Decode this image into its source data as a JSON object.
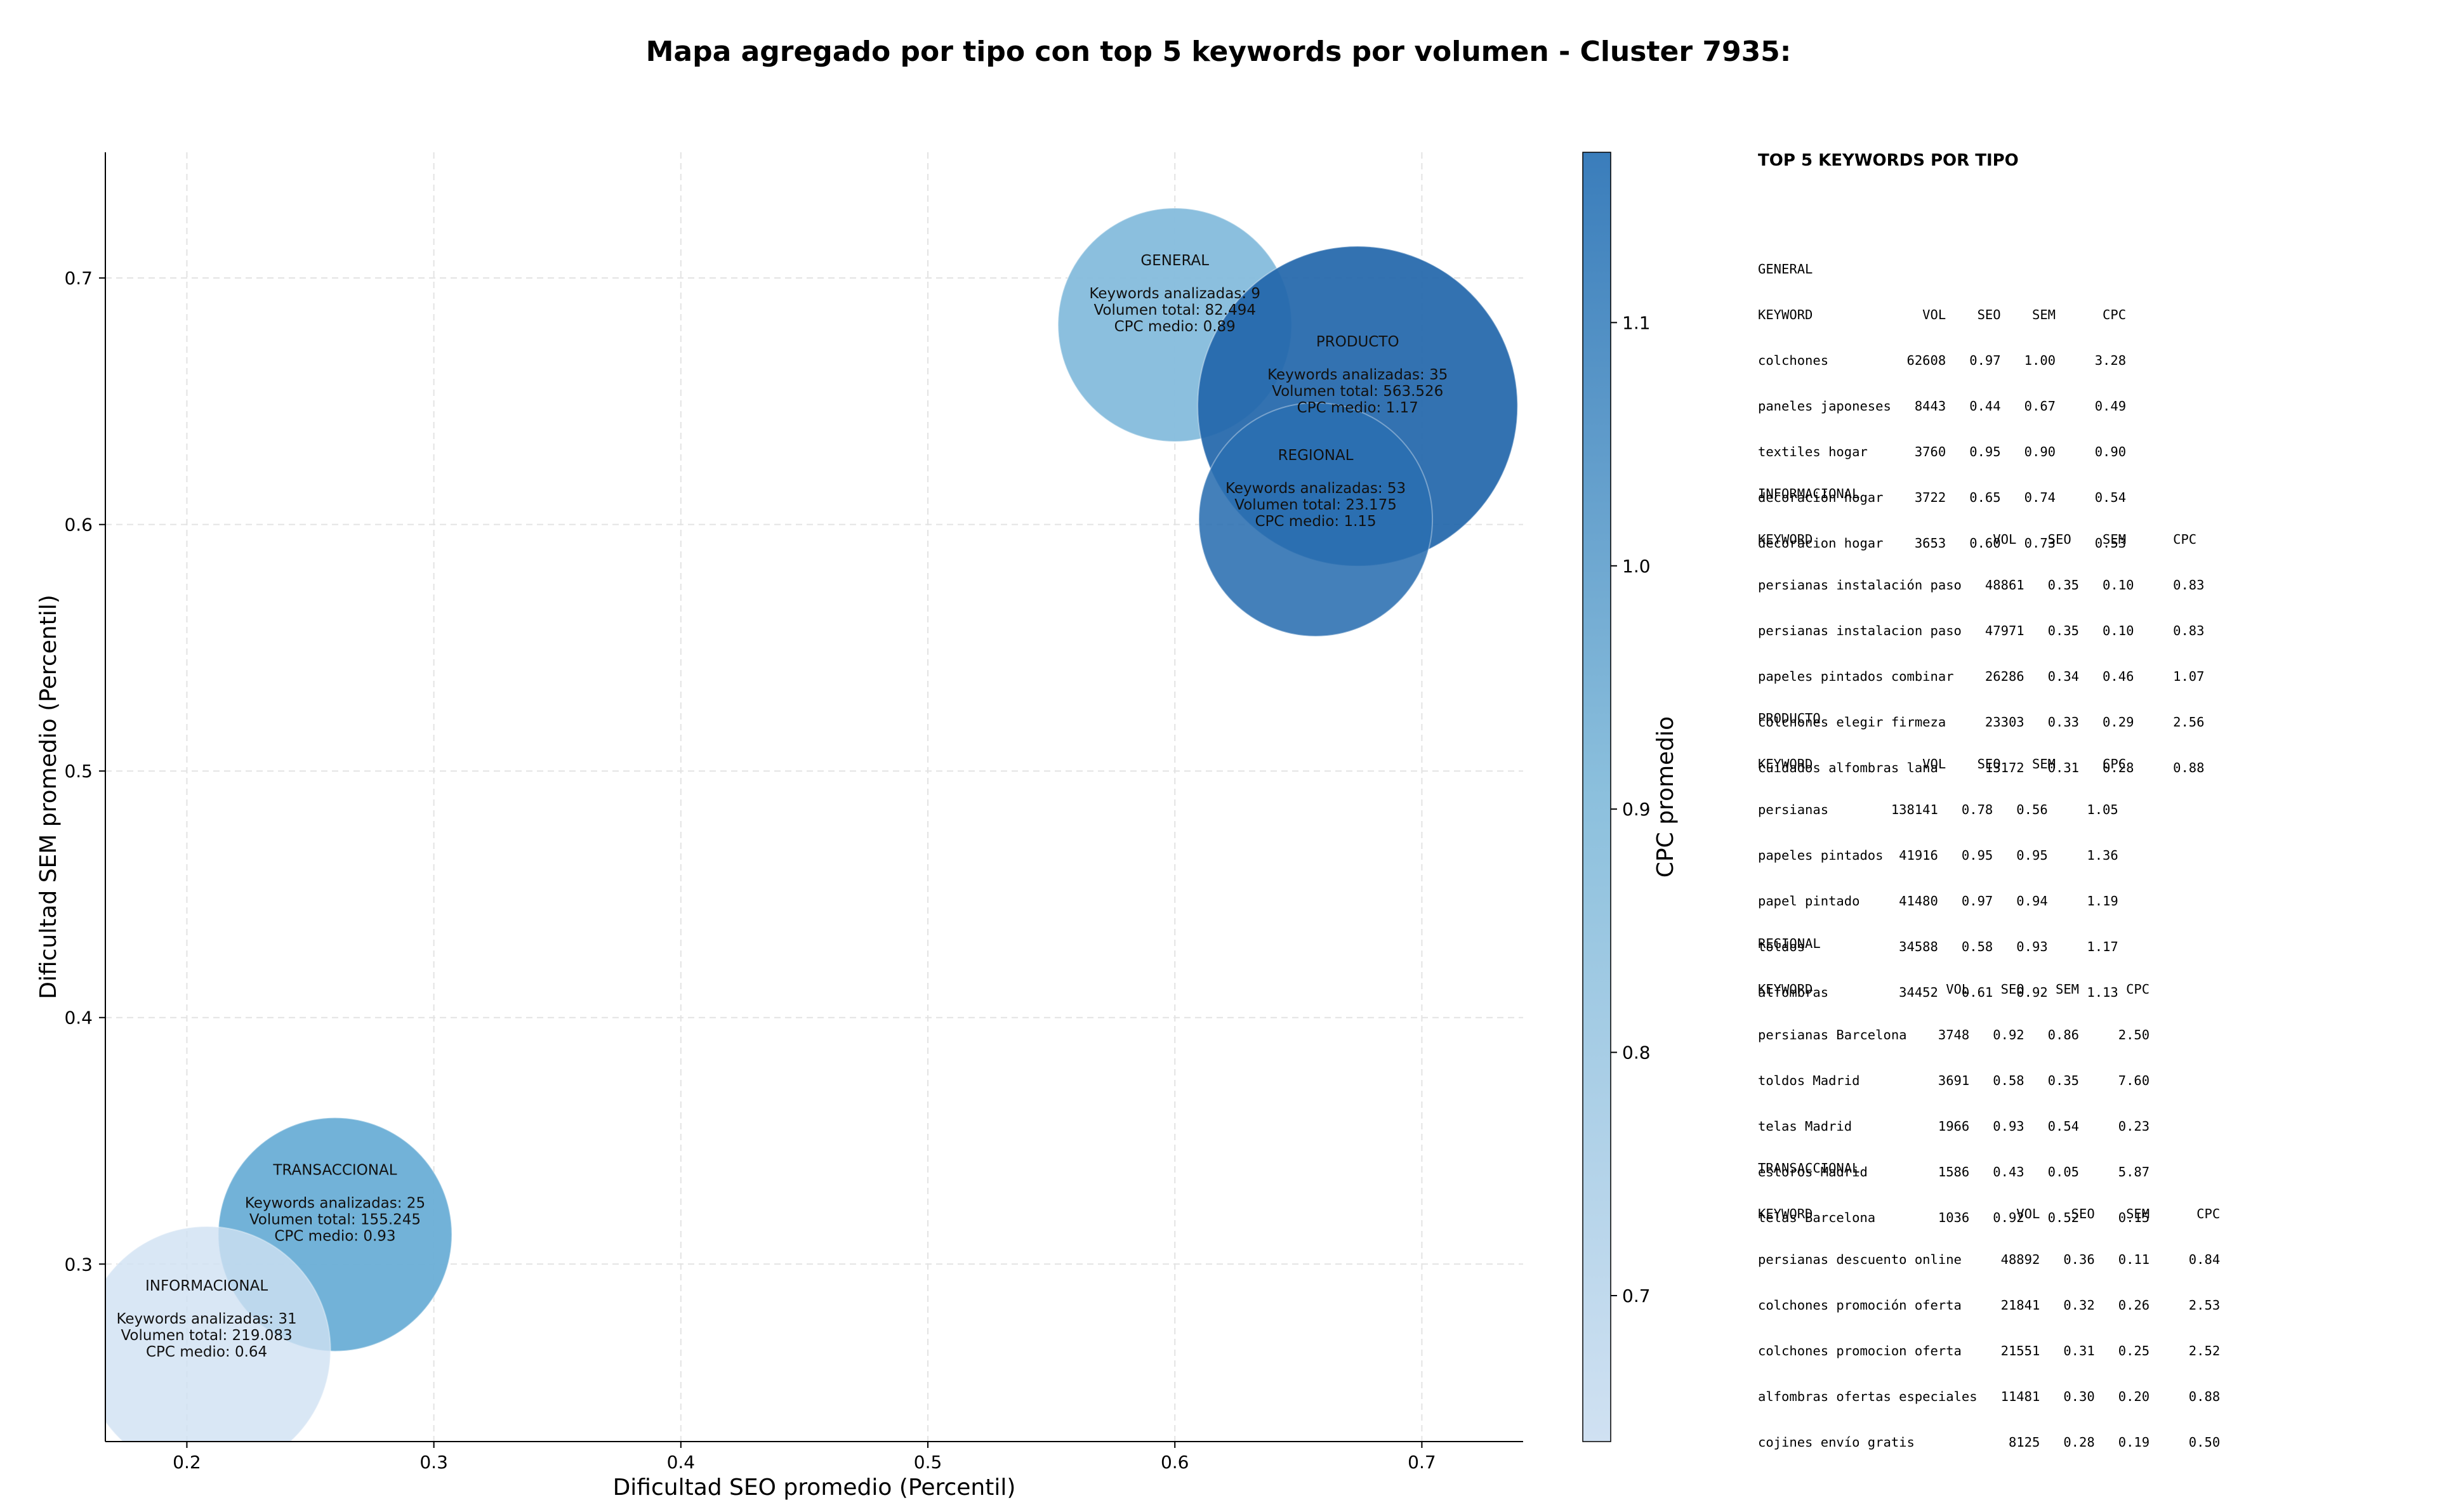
{
  "title": "Mapa agregado por tipo con top 5 keywords por volumen - Cluster 7935:",
  "chart_data": {
    "type": "scatter",
    "subtype": "bubble",
    "title": "Mapa agregado por tipo con top 5 keywords por volumen - Cluster 7935:",
    "xlabel": "Dificultad SEO promedio (Percentil)",
    "ylabel": "Dificultad SEM promedio (Percentil)",
    "xlim": [
      0.167,
      0.741
    ],
    "ylim": [
      0.228,
      0.751
    ],
    "xticks": [
      0.2,
      0.3,
      0.4,
      0.5,
      0.6,
      0.7
    ],
    "yticks": [
      0.3,
      0.4,
      0.5,
      0.6,
      0.7
    ],
    "xtick_labels": [
      "0.2",
      "0.3",
      "0.4",
      "0.5",
      "0.6",
      "0.7"
    ],
    "ytick_labels": [
      "0.3",
      "0.4",
      "0.5",
      "0.6",
      "0.7"
    ],
    "grid": true,
    "bubble_size_encodes": "Volumen total",
    "color_encodes": "CPC medio",
    "colorbar": {
      "label": "CPC promedio",
      "range": [
        0.64,
        1.17
      ],
      "ticks": [
        0.7,
        0.8,
        0.9,
        1.0,
        1.1
      ],
      "tick_labels": [
        "0.7",
        "0.8",
        "0.9",
        "1.0",
        "1.1"
      ],
      "color_low": "#d0e1f2",
      "color_high": "#3a7dbb"
    },
    "points": [
      {
        "label": "INFORMACIONAL",
        "x": 0.208,
        "y": 0.265,
        "keywords_line": "Keywords analizadas: 31",
        "volume_line": "Volumen total: 219.083",
        "cpc_line": "CPC medio: 0.64",
        "volume": 219083,
        "cpc": 0.64,
        "color": "#cfe1f2",
        "opacity": 0.8
      },
      {
        "label": "TRANSACCIONAL",
        "x": 0.26,
        "y": 0.312,
        "keywords_line": "Keywords analizadas: 25",
        "volume_line": "Volumen total: 155.245",
        "cpc_line": "CPC medio: 0.93",
        "volume": 155245,
        "cpc": 0.93,
        "color": "#6aaed6",
        "opacity": 0.95
      },
      {
        "label": "GENERAL",
        "x": 0.6,
        "y": 0.681,
        "keywords_line": "Keywords analizadas: 9",
        "volume_line": "Volumen total: 82.494",
        "cpc_line": "CPC medio: 0.89",
        "volume": 82494,
        "cpc": 0.89,
        "color": "#85bcdc",
        "opacity": 0.95
      },
      {
        "label": "PRODUCTO",
        "x": 0.674,
        "y": 0.648,
        "keywords_line": "Keywords analizadas: 35",
        "volume_line": "Volumen total: 563.526",
        "cpc_line": "CPC medio: 1.17",
        "volume": 563526,
        "cpc": 1.17,
        "color": "#2266aa",
        "opacity": 0.92
      },
      {
        "label": "REGIONAL",
        "x": 0.657,
        "y": 0.602,
        "keywords_line": "Keywords analizadas: 53",
        "volume_line": "Volumen total: 23.175",
        "cpc_line": "CPC medio: 1.15",
        "volume": 23175,
        "cpc": 1.15,
        "color": "#2a6eb0",
        "opacity": 0.88
      }
    ]
  },
  "side_panel": {
    "title": "TOP 5 KEYWORDS POR TIPO",
    "blocks": [
      {
        "type": "GENERAL",
        "header": "KEYWORD              VOL    SEO    SEM      CPC",
        "rows": [
          "colchones          62608   0.97   1.00     3.28",
          "paneles japoneses   8443   0.44   0.67     0.49",
          "textiles hogar      3760   0.95   0.90     0.90",
          "decoración hogar    3722   0.65   0.74     0.54",
          "decoracion hogar    3653   0.60   0.73     0.53"
        ]
      },
      {
        "type": "INFORMACIONAL",
        "header": "KEYWORD                       VOL    SEO    SEM      CPC",
        "rows": [
          "persianas instalación paso   48861   0.35   0.10     0.83",
          "persianas instalacion paso   47971   0.35   0.10     0.83",
          "papeles pintados combinar    26286   0.34   0.46     1.07",
          "colchones elegir firmeza     23303   0.33   0.29     2.56",
          "cuidados alfombras lana      13172   0.31   0.28     0.88"
        ]
      },
      {
        "type": "PRODUCTO",
        "header": "KEYWORD              VOL    SEO    SEM      CPC",
        "rows": [
          "persianas        138141   0.78   0.56     1.05",
          "papeles pintados  41916   0.95   0.95     1.36",
          "papel pintado     41480   0.97   0.94     1.19",
          "toldos            34588   0.58   0.93     1.17",
          "alfombras         34452   0.61   0.92     1.13"
        ]
      },
      {
        "type": "REGIONAL",
        "header": "KEYWORD                 VOL    SEO    SEM      CPC",
        "rows": [
          "persianas Barcelona    3748   0.92   0.86     2.50",
          "toldos Madrid          3691   0.58   0.35     7.60",
          "telas Madrid           1966   0.93   0.54     0.23",
          "estoros Madrid         1586   0.43   0.05     5.87",
          "telas Barcelona        1036   0.92   0.52     0.15"
        ]
      },
      {
        "type": "TRANSACCIONAL",
        "header": "KEYWORD                          VOL    SEO    SEM      CPC",
        "rows": [
          "persianas descuento online     48892   0.36   0.11     0.84",
          "colchones promoción oferta     21841   0.32   0.26     2.53",
          "colchones promocion oferta     21551   0.31   0.25     2.52",
          "alfombras ofertas especiales   11481   0.30   0.20     0.88",
          "cojines envío gratis            8125   0.28   0.19     0.50"
        ]
      }
    ]
  }
}
